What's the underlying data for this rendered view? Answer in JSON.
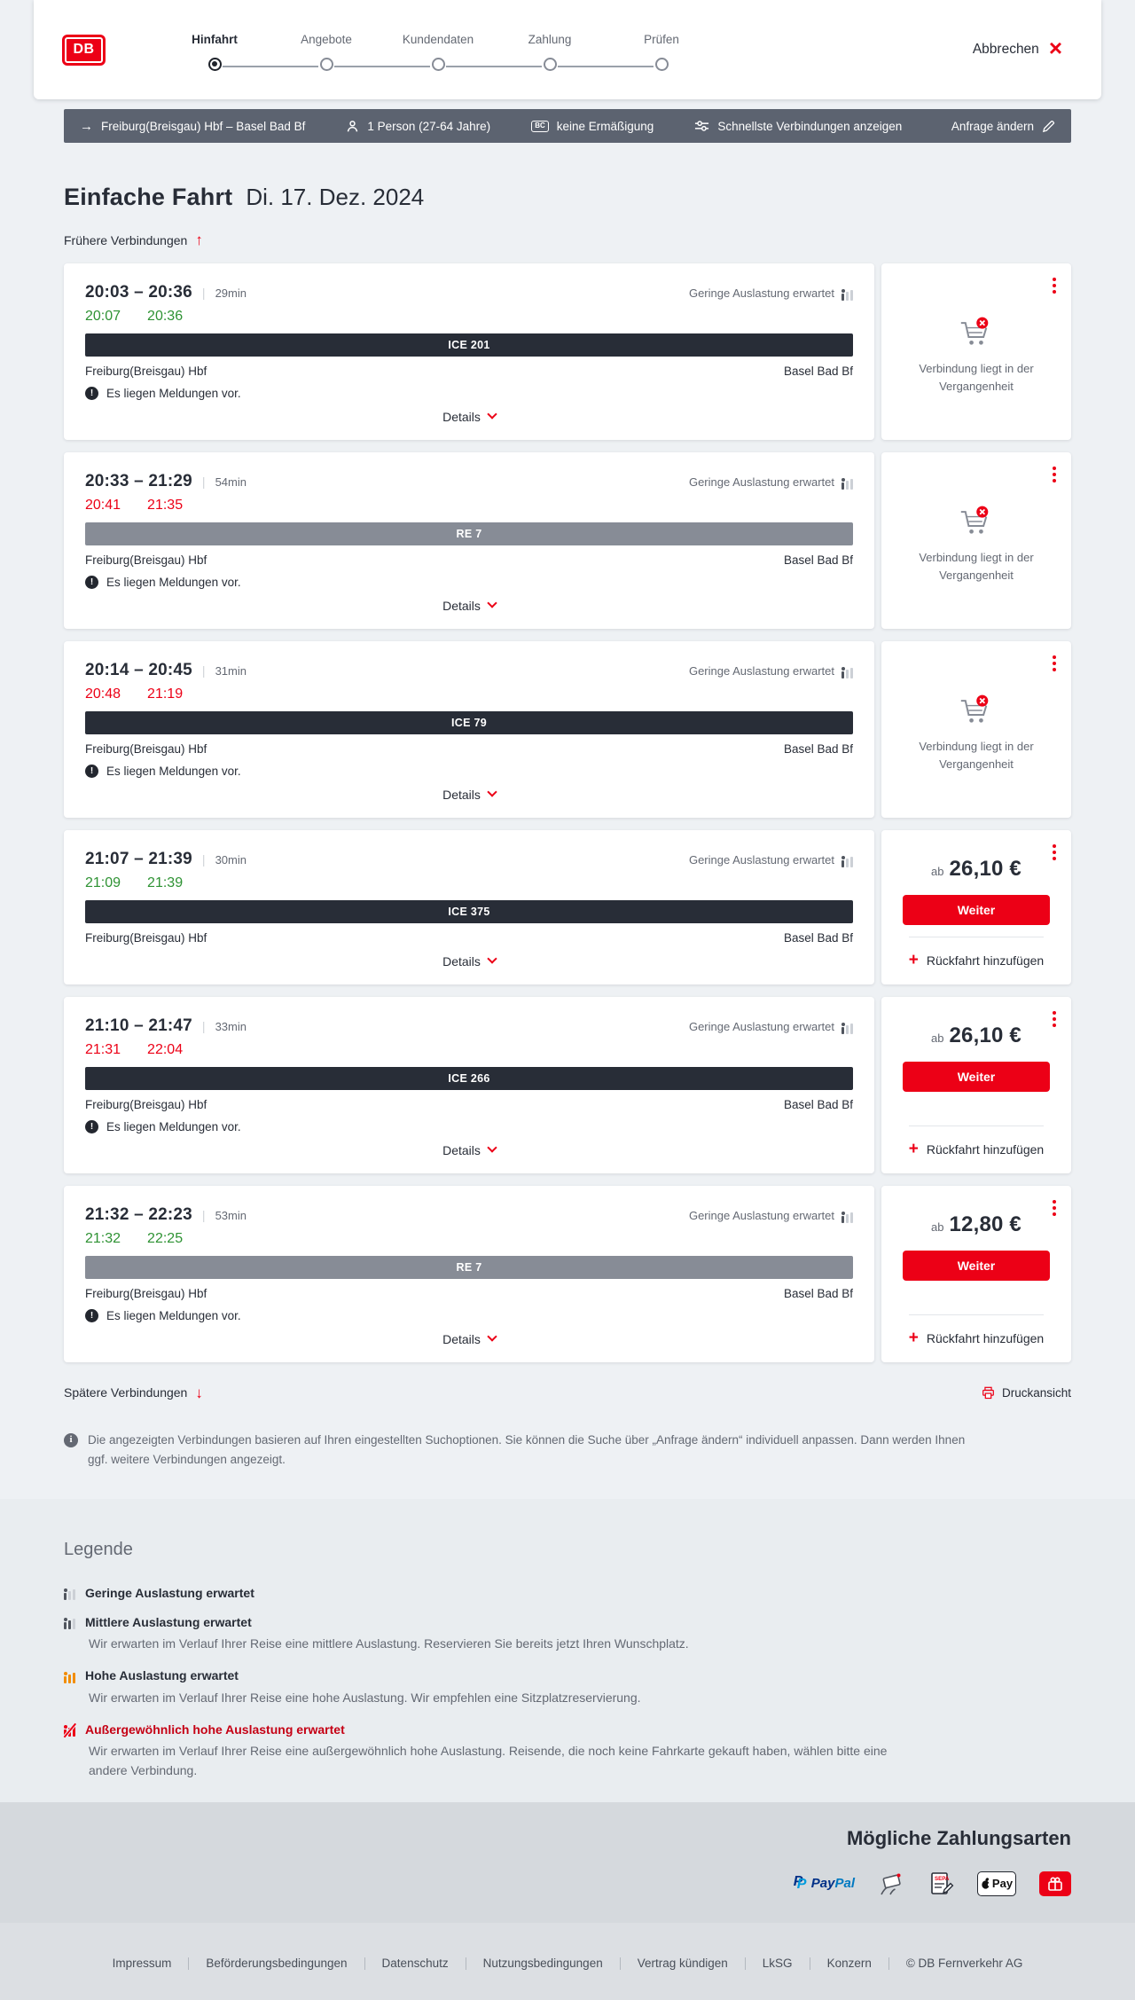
{
  "header": {
    "logo": "DB",
    "steps": [
      {
        "label": "Hinfahrt",
        "active": true
      },
      {
        "label": "Angebote",
        "active": false
      },
      {
        "label": "Kundendaten",
        "active": false
      },
      {
        "label": "Zahlung",
        "active": false
      },
      {
        "label": "Prüfen",
        "active": false
      }
    ],
    "cancel_label": "Abbrechen"
  },
  "search_bar": {
    "route": "Freiburg(Breisgau) Hbf – Basel Bad Bf",
    "passengers": "1 Person (27-64 Jahre)",
    "discount": "keine Ermäßigung",
    "filter": "Schnellste Verbindungen anzeigen",
    "edit_label": "Anfrage ändern"
  },
  "results": {
    "title": "Einfache Fahrt",
    "date": "Di. 17. Dez. 2024",
    "earlier_label": "Frühere Verbindungen",
    "later_label": "Spätere Verbindungen",
    "print_label": "Druckansicht",
    "info_text": "Die angezeigten Verbindungen basieren auf Ihren eingestellten Suchoptionen. Sie können die Suche über „Anfrage ändern“ individuell anpassen. Dann werden Ihnen ggf. weitere Verbindungen angezeigt."
  },
  "connections": [
    {
      "times": "20:03 – 20:36",
      "duration": "29min",
      "actual_departure": "20:07",
      "actual_arrival": "20:36",
      "actual_status": "ontime",
      "train": "ICE 201",
      "train_type": "ice",
      "from": "Freiburg(Breisgau) Hbf",
      "to": "Basel Bad Bf",
      "occupancy": "Geringe Auslastung erwartet",
      "occupancy_level": "low",
      "notice": "Es liegen Meldungen vor.",
      "details_label": "Details",
      "action": {
        "type": "past",
        "message": "Verbindung liegt in der Vergangenheit"
      }
    },
    {
      "times": "20:33 – 21:29",
      "duration": "54min",
      "actual_departure": "20:41",
      "actual_arrival": "21:35",
      "actual_status": "delayed",
      "train": "RE 7",
      "train_type": "regional",
      "from": "Freiburg(Breisgau) Hbf",
      "to": "Basel Bad Bf",
      "occupancy": "Geringe Auslastung erwartet",
      "occupancy_level": "low",
      "notice": "Es liegen Meldungen vor.",
      "details_label": "Details",
      "action": {
        "type": "past",
        "message": "Verbindung liegt in der Vergangenheit"
      }
    },
    {
      "times": "20:14 – 20:45",
      "duration": "31min",
      "actual_departure": "20:48",
      "actual_arrival": "21:19",
      "actual_status": "delayed",
      "train": "ICE 79",
      "train_type": "ice",
      "from": "Freiburg(Breisgau) Hbf",
      "to": "Basel Bad Bf",
      "occupancy": "Geringe Auslastung erwartet",
      "occupancy_level": "low",
      "notice": "Es liegen Meldungen vor.",
      "details_label": "Details",
      "action": {
        "type": "past",
        "message": "Verbindung liegt in der Vergangenheit"
      }
    },
    {
      "times": "21:07 – 21:39",
      "duration": "30min",
      "actual_departure": "21:09",
      "actual_arrival": "21:39",
      "actual_status": "ontime",
      "train": "ICE 375",
      "train_type": "ice",
      "from": "Freiburg(Breisgau) Hbf",
      "to": "Basel Bad Bf",
      "occupancy": "Geringe Auslastung erwartet",
      "occupancy_level": "low",
      "notice": "",
      "details_label": "Details",
      "action": {
        "type": "price",
        "price": "26,10 €"
      }
    },
    {
      "times": "21:10 – 21:47",
      "duration": "33min",
      "actual_departure": "21:31",
      "actual_arrival": "22:04",
      "actual_status": "delayed",
      "train": "ICE 266",
      "train_type": "ice",
      "from": "Freiburg(Breisgau) Hbf",
      "to": "Basel Bad Bf",
      "occupancy": "Geringe Auslastung erwartet",
      "occupancy_level": "low",
      "notice": "Es liegen Meldungen vor.",
      "details_label": "Details",
      "action": {
        "type": "price",
        "price": "26,10 €"
      }
    },
    {
      "times": "21:32 – 22:23",
      "duration": "53min",
      "actual_departure": "21:32",
      "actual_arrival": "22:25",
      "actual_status": "ontime",
      "train": "RE 7",
      "train_type": "regional",
      "from": "Freiburg(Breisgau) Hbf",
      "to": "Basel Bad Bf",
      "occupancy": "Geringe Auslastung erwartet",
      "occupancy_level": "low",
      "notice": "Es liegen Meldungen vor.",
      "details_label": "Details",
      "action": {
        "type": "price",
        "price": "12,80 €"
      }
    }
  ],
  "price_panel": {
    "prefix": "ab",
    "button_label": "Weiter",
    "return_label": "Rückfahrt hinzufügen"
  },
  "legend": {
    "title": "Legende",
    "items": [
      {
        "label": "Geringe Auslastung erwartet",
        "level": "low",
        "description": ""
      },
      {
        "label": "Mittlere Auslastung erwartet",
        "level": "medium",
        "description": "Wir erwarten im Verlauf Ihrer Reise eine mittlere Auslastung. Reservieren Sie bereits jetzt Ihren Wunschplatz."
      },
      {
        "label": "Hohe Auslastung erwartet",
        "level": "high",
        "description": "Wir erwarten im Verlauf Ihrer Reise eine hohe Auslastung. Wir empfehlen eine Sitzplatzreservierung."
      },
      {
        "label": "Außergewöhnlich hohe Auslastung erwartet",
        "level": "exceptional",
        "description": "Wir erwarten im Verlauf Ihrer Reise eine außergewöhnlich hohe Auslastung. Reisende, die noch keine Fahrkarte gekauft haben, wählen bitte eine andere Verbindung."
      }
    ]
  },
  "payment": {
    "title": "Mögliche Zahlungsarten",
    "labels": {
      "paypal_a": "Pay",
      "paypal_b": "Pal",
      "paypal_mark": "P",
      "applepay": "Pay",
      "sepa": "SEPA"
    },
    "methods": [
      "PayPal",
      "Kreditkarte",
      "SEPA-Lastschrift",
      "Apple Pay",
      "Geschenkgutschein"
    ]
  },
  "footer": {
    "links": [
      "Impressum",
      "Beförderungsbedingungen",
      "Datenschutz",
      "Nutzungsbedingungen",
      "Vertrag kündigen",
      "LkSG",
      "Konzern"
    ],
    "copyright": "© DB Fernverkehr AG"
  },
  "colors": {
    "db_red": "#ec0016",
    "dark": "#282d37",
    "ontime_green": "#2e9233",
    "delay_red": "#ec0016",
    "high_orange": "#f28c00"
  }
}
